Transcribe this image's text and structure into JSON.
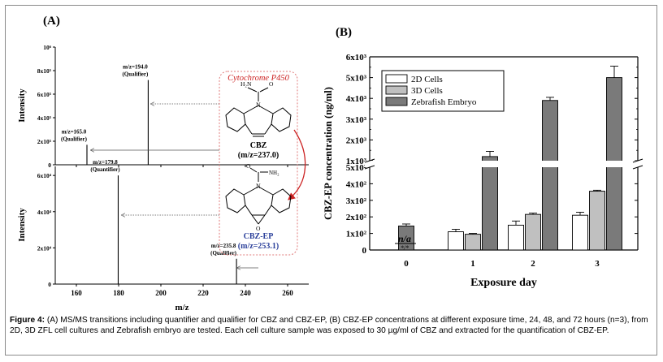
{
  "panel_a": {
    "label": "(A)",
    "xlabel": "m/z",
    "ylabel_top": "Intensity",
    "ylabel_bottom": "Intensity",
    "enzyme_label": "Cytochrome P450",
    "cbz_name": "CBZ",
    "cbz_mz": "(m/z=237.0)",
    "cbzep_name": "CBZ-EP",
    "cbzep_mz": "(m/z=253.1)",
    "chem_h2n": "H₂N",
    "chem_o": "O",
    "chem_n": "N",
    "chem_nh2": "NH₂"
  },
  "chart_data": [
    {
      "type": "bar",
      "title": "",
      "xlabel": "m/z",
      "ylabel": "Intensity",
      "xlim": [
        150,
        270
      ],
      "ylim": [
        0,
        1000000
      ],
      "yticks": [
        "0",
        "2x10⁵",
        "4x10⁵",
        "6x10⁵",
        "8x10⁵",
        "10⁶"
      ],
      "xticks": [
        "160",
        "180",
        "200",
        "220",
        "240",
        "260"
      ],
      "peaks": [
        {
          "mz": 194.0,
          "intensity": 720000,
          "label": "m/z=194.0",
          "role": "(Qualifier)"
        },
        {
          "mz": 165.0,
          "intensity": 170000,
          "label": "m/z=165.0",
          "role": "(Qualifier)"
        }
      ]
    },
    {
      "type": "bar",
      "title": "",
      "xlabel": "m/z",
      "ylabel": "Intensity",
      "xlim": [
        150,
        270
      ],
      "ylim": [
        0,
        650000
      ],
      "yticks": [
        "0",
        "2x10⁴",
        "4x10⁴",
        "6x10⁴"
      ],
      "xticks": [
        "160",
        "180",
        "200",
        "220",
        "240",
        "260"
      ],
      "peaks": [
        {
          "mz": 179.8,
          "intensity": 600000,
          "label": "m/z=179.8",
          "role": "(Quantifier)"
        },
        {
          "mz": 235.8,
          "intensity": 140000,
          "label": "m/z=235.8",
          "role": "(Qualifier)"
        }
      ]
    },
    {
      "type": "bar",
      "title": "",
      "panel_label": "(B)",
      "xlabel": "Exposure day",
      "ylabel": "CBZ-EP concentration (ng/ml)",
      "categories": [
        "0",
        "1",
        "2",
        "3"
      ],
      "axis_break": true,
      "yticks_lower": [
        "0",
        "1x10²",
        "2x10²",
        "3x10²",
        "4x10²",
        "5x10²"
      ],
      "yticks_upper": [
        "1x10³",
        "2x10³",
        "3x10³",
        "4x10³",
        "5x10³",
        "6x10³"
      ],
      "legend_position": "top-left",
      "series": [
        {
          "name": "2D Cells",
          "color": "#ffffff",
          "values": [
            null,
            110,
            150,
            210
          ],
          "errors": [
            null,
            15,
            25,
            18
          ]
        },
        {
          "name": "3D Cells",
          "color": "#c0c0c0",
          "values": [
            null,
            95,
            215,
            355
          ],
          "errors": [
            null,
            5,
            8,
            6
          ]
        },
        {
          "name": "Zebrafish Embryo",
          "color": "#7a7a7a",
          "values": [
            145,
            1200,
            3900,
            5000
          ],
          "errors": [
            12,
            250,
            150,
            550
          ]
        }
      ],
      "annotations": [
        {
          "category": "0",
          "text": "n/a"
        },
        {
          "category": "0",
          "text": "*/*"
        }
      ]
    }
  ],
  "panel_b": {
    "label": "(B)"
  },
  "caption": {
    "bold_prefix": "Figure 4:",
    "text": " (A) MS/MS transitions including quantifier and qualifier for CBZ and CBZ-EP, (B) CBZ-EP concentrations at different exposure time, 24, 48, and 72 hours (n=3), from 2D, 3D ZFL cell cultures and Zebrafish embryo are tested. Each cell culture sample was exposed to 30 µg/ml of CBZ and extracted for the quantification of CBZ-EP."
  },
  "colors": {
    "enzyme": "#cc2222",
    "cbzep_text": "#2a3f9a",
    "arrow_red": "#cc2222",
    "frame": "#8a8a8a",
    "dotted_box": "#e07a7a"
  }
}
